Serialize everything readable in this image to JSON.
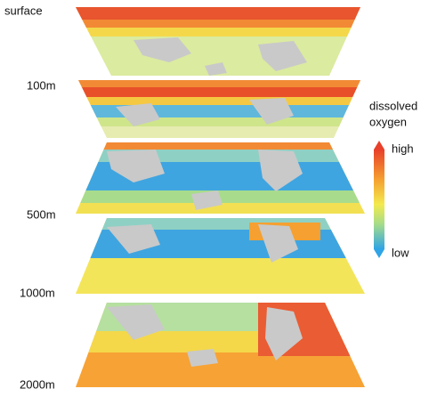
{
  "depth_labels": [
    "surface",
    "100m",
    "500m",
    "1000m",
    "2000m"
  ],
  "legend": {
    "title_lines": [
      "dissolved",
      "oxygen"
    ],
    "high": "high",
    "low": "low"
  }
}
